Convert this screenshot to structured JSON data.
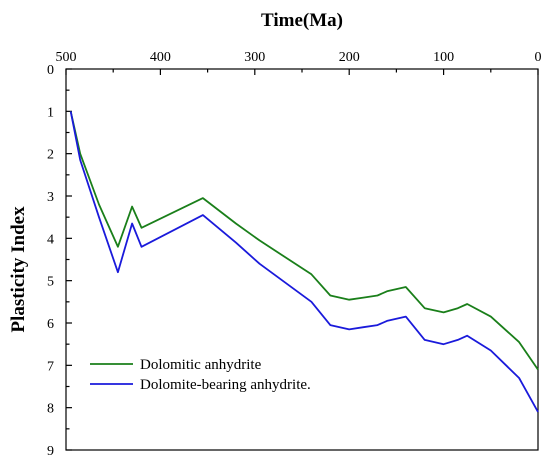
{
  "chart_data": {
    "type": "line",
    "xlabel": "Time(Ma)",
    "ylabel": "Plasticity Index",
    "x_axis_position": "top",
    "x_reversed": true,
    "y_reversed": true,
    "xlim": [
      500,
      0
    ],
    "ylim": [
      0,
      9
    ],
    "x_ticks": [
      500,
      400,
      300,
      200,
      100,
      0
    ],
    "y_ticks": [
      0,
      1,
      2,
      3,
      4,
      5,
      6,
      7,
      8,
      9
    ],
    "grid": false,
    "legend_position": "bottom-left",
    "series": [
      {
        "name": "Dolomitic anhydrite",
        "color": "#1a7f1a",
        "x": [
          495,
          485,
          465,
          445,
          430,
          420,
          355,
          320,
          295,
          240,
          220,
          200,
          185,
          170,
          160,
          140,
          120,
          100,
          85,
          75,
          50,
          20,
          0
        ],
        "y": [
          1.0,
          2.0,
          3.2,
          4.2,
          3.25,
          3.75,
          3.05,
          3.65,
          4.05,
          4.85,
          5.35,
          5.45,
          5.4,
          5.35,
          5.25,
          5.15,
          5.65,
          5.75,
          5.65,
          5.55,
          5.85,
          6.45,
          7.1
        ]
      },
      {
        "name": "Dolomite-bearing anhydrite.",
        "color": "#1a1adb",
        "x": [
          495,
          485,
          465,
          445,
          430,
          420,
          355,
          320,
          295,
          240,
          220,
          200,
          185,
          170,
          160,
          140,
          120,
          100,
          85,
          75,
          50,
          20,
          0
        ],
        "y": [
          1.0,
          2.15,
          3.5,
          4.8,
          3.65,
          4.2,
          3.45,
          4.1,
          4.6,
          5.5,
          6.05,
          6.15,
          6.1,
          6.05,
          5.95,
          5.85,
          6.4,
          6.5,
          6.4,
          6.3,
          6.65,
          7.3,
          8.1
        ]
      }
    ]
  }
}
